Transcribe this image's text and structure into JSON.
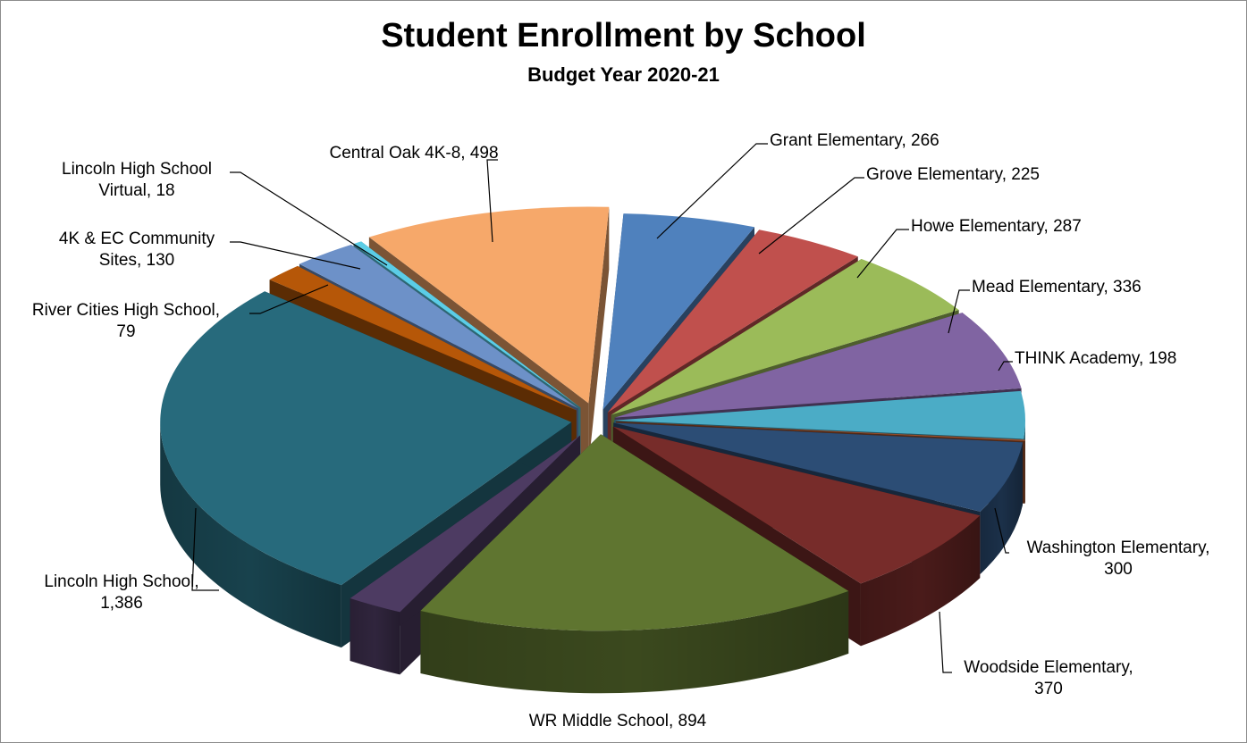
{
  "chart_data": {
    "type": "pie",
    "title": "Student Enrollment by School",
    "subtitle": "Budget Year 2020-21",
    "slices": [
      {
        "name": "Grant Elementary",
        "value": 266,
        "value_label": "266",
        "color": "#4f81bd"
      },
      {
        "name": "Grove Elementary",
        "value": 225,
        "value_label": "225",
        "color": "#c0504d"
      },
      {
        "name": "Howe Elementary",
        "value": 287,
        "value_label": "287",
        "color": "#9bbb59"
      },
      {
        "name": "Mead Elementary",
        "value": 336,
        "value_label": "336",
        "color": "#8064a2"
      },
      {
        "name": "THINK Academy",
        "value": 198,
        "value_label": "198",
        "color": "#4bacc6"
      },
      {
        "name": "",
        "value": 0,
        "value_label": "",
        "color": "#a0522d"
      },
      {
        "name": "Washington Elementary",
        "value": 300,
        "value_label": "300",
        "color": "#2c4d75"
      },
      {
        "name": "Woodside Elementary",
        "value": 370,
        "value_label": "370",
        "color": "#772c2a"
      },
      {
        "name": "WR Middle School",
        "value": 894,
        "value_label": "894",
        "color": "#5f7530"
      },
      {
        "name": "",
        "value": 0,
        "value_label": "",
        "color": "#4d3b62"
      },
      {
        "name": "Lincoln High School",
        "value": 1386,
        "value_label": "1,386",
        "color": "#276a7c"
      },
      {
        "name": "River Cities High School",
        "value": 79,
        "value_label": "79",
        "color": "#b65708"
      },
      {
        "name": "4K & EC Community Sites",
        "value": 130,
        "value_label": "130",
        "color": "#6d91c8"
      },
      {
        "name": "Lincoln High School Virtual",
        "value": 18,
        "value_label": "18",
        "color": "#5bcde6"
      },
      {
        "name": "Central Oak 4K-8",
        "value": 498,
        "value_label": "498",
        "color": "#f6a86a"
      }
    ]
  },
  "labels": {
    "grant": [
      "Grant Elementary,  266"
    ],
    "grove": [
      "Grove Elementary,  225"
    ],
    "howe": [
      "Howe Elementary,  287"
    ],
    "mead": [
      "Mead Elementary,  336"
    ],
    "think": [
      "THINK Academy,  198"
    ],
    "washington": [
      "Washington Elementary,",
      "300"
    ],
    "woodside": [
      "Woodside Elementary,",
      "370"
    ],
    "wr": [
      "WR Middle School,  894"
    ],
    "lincoln": [
      "Lincoln High School,",
      "1,386"
    ],
    "rivercities": [
      "River Cities High School,",
      "79"
    ],
    "ec": [
      "4K & EC Community",
      "Sites,  130"
    ],
    "virtual": [
      "Lincoln High School",
      "Virtual,  18"
    ],
    "centraloak": [
      "Central Oak 4K-8,  498"
    ]
  }
}
